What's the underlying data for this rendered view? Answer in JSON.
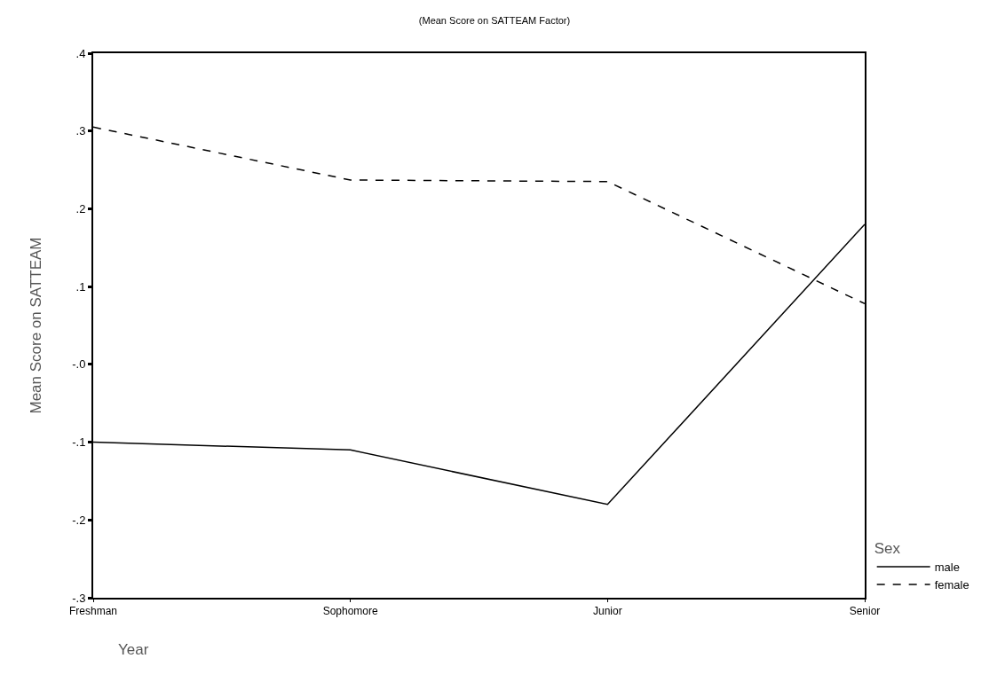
{
  "chart_data": {
    "type": "line",
    "title": "(Mean Score on SATTEAM Factor)",
    "xlabel": "Year",
    "ylabel": "Mean Score on SATTEAM",
    "legend_title": "Sex",
    "categories": [
      "Freshman",
      "Sophomore",
      "Junior",
      "Senior"
    ],
    "series": [
      {
        "name": "male",
        "color": "#000000",
        "line_style": "solid",
        "values": [
          -0.1,
          -0.11,
          -0.18,
          0.18
        ]
      },
      {
        "name": "female",
        "color": "#000000",
        "line_style": "dashed",
        "values": [
          0.305,
          0.237,
          0.235,
          0.078
        ]
      }
    ],
    "ylim": [
      -0.3,
      0.4
    ],
    "yticks": [
      {
        "value": 0.4,
        "label": ".4"
      },
      {
        "value": 0.3,
        "label": ".3"
      },
      {
        "value": 0.2,
        "label": ".2"
      },
      {
        "value": 0.1,
        "label": ".1"
      },
      {
        "value": 0,
        "label": "-.0"
      },
      {
        "value": -0.1,
        "label": "-.1"
      },
      {
        "value": -0.2,
        "label": "-.2"
      },
      {
        "value": -0.3,
        "label": "-.3"
      }
    ],
    "grid": false,
    "legend": "bottom right",
    "marker": "none"
  }
}
